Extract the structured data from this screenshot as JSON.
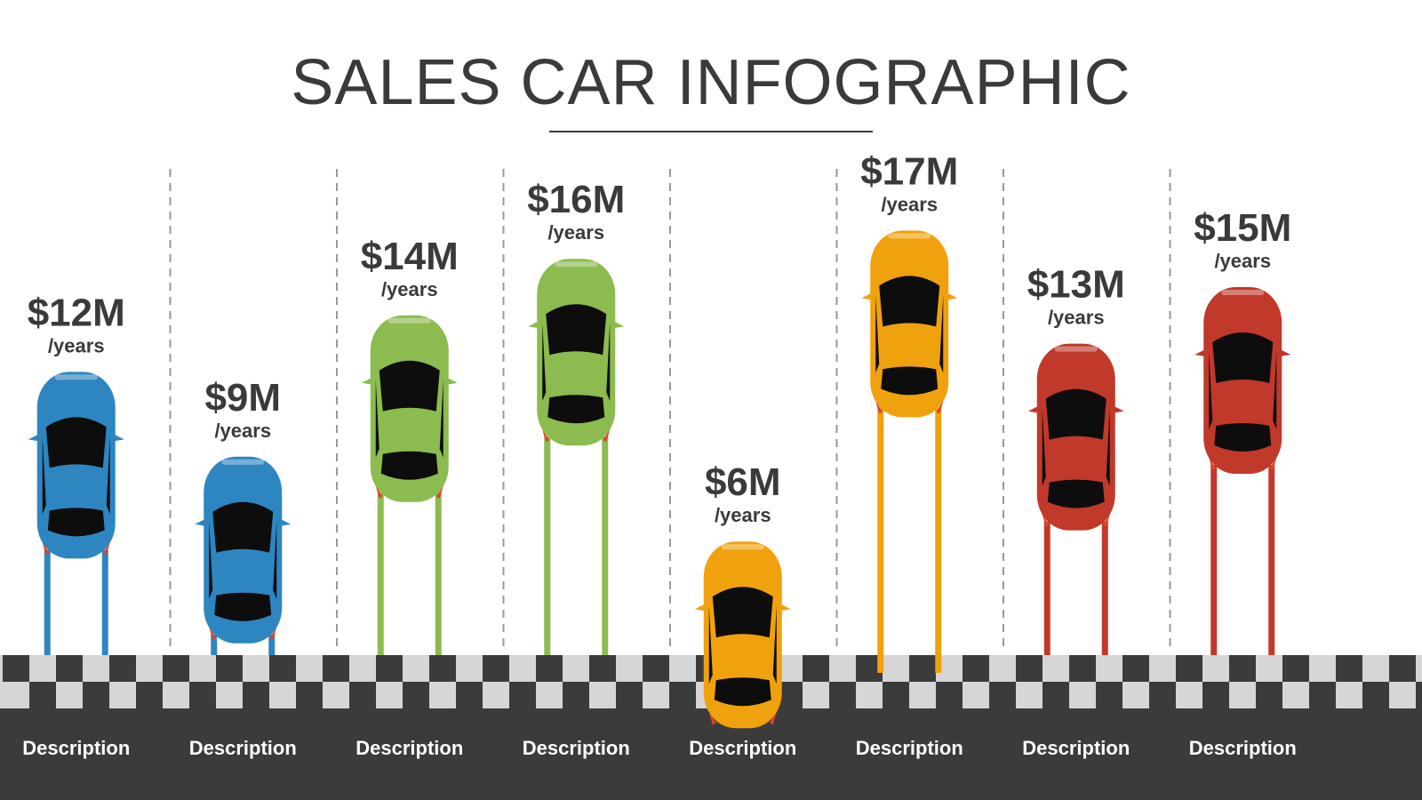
{
  "title": "SALES CAR INFOGRAPHIC",
  "chart_data": {
    "type": "bar",
    "title": "SALES CAR INFOGRAPHIC",
    "unit_label": "/years",
    "value_prefix": "$",
    "value_suffix": "M",
    "categories": [
      "Description",
      "Description",
      "Description",
      "Description",
      "Description",
      "Description",
      "Description",
      "Description"
    ],
    "values": [
      12,
      9,
      14,
      16,
      6,
      17,
      13,
      15
    ],
    "value_labels": [
      "$12M",
      "$9M",
      "$14M",
      "$16M",
      "$6M",
      "$17M",
      "$13M",
      "$15M"
    ],
    "bar_colors": [
      "#2e86c1",
      "#2e86c1",
      "#8cbb4f",
      "#8cbb4f",
      "#f0a10e",
      "#f0a10e",
      "#c0392b",
      "#c0392b"
    ],
    "grid": false,
    "legend": "none"
  },
  "colors": {
    "text_dark": "#3a3a3a",
    "track_dark": "#3b3b3b",
    "checker_light": "#d6d6d6",
    "divider": "#999999"
  },
  "icons": {
    "bar_mark": "car-top-view-icon"
  }
}
